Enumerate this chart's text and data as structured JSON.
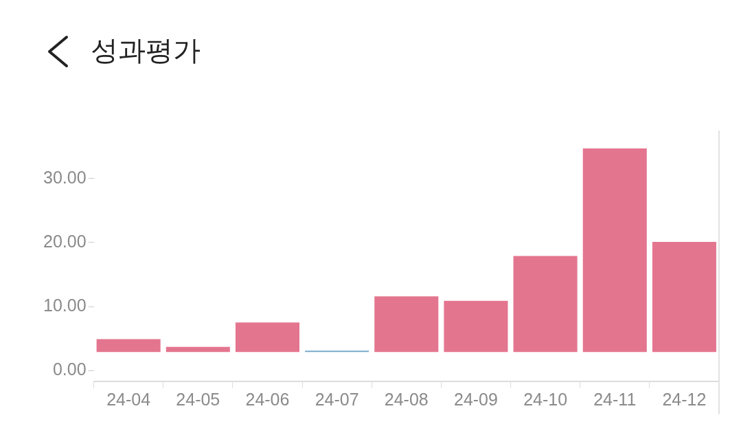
{
  "chart_data": {
    "type": "bar",
    "title": "성과평가",
    "categories": [
      "24-04",
      "24-05",
      "24-06",
      "24-07",
      "24-08",
      "24-09",
      "24-10",
      "24-11",
      "24-12"
    ],
    "base": [
      2.9,
      2.9,
      2.9,
      2.9,
      2.9,
      2.9,
      2.9,
      2.9,
      2.9
    ],
    "values": [
      2.0,
      0.8,
      4.6,
      0.2,
      8.7,
      8.0,
      15.0,
      31.8,
      17.2
    ],
    "colors": [
      "#e4758f",
      "#e4758f",
      "#e4758f",
      "#7aaacb",
      "#e4758f",
      "#e4758f",
      "#e4758f",
      "#e4758f",
      "#e4758f"
    ],
    "ylim": [
      -1.7,
      37.5
    ],
    "yticks": [
      {
        "value": 0,
        "label": "0.00"
      },
      {
        "value": 10,
        "label": "10.00"
      },
      {
        "value": 20,
        "label": "20.00"
      },
      {
        "value": 30,
        "label": "30.00"
      }
    ],
    "grid": false,
    "legend": false
  }
}
